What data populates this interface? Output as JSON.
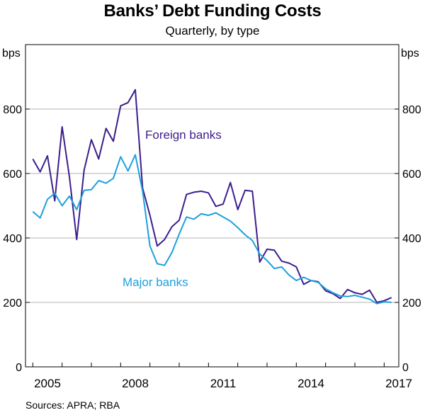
{
  "chart_data": {
    "type": "line",
    "title": "Banks’ Debt Funding Costs",
    "subtitle": "Quarterly, by type",
    "ylabel_left": "bps",
    "ylabel_right": "bps",
    "ylim": [
      0,
      1000
    ],
    "y_ticks": [
      0,
      200,
      400,
      600,
      800
    ],
    "xlim": [
      2004.75,
      2017.5
    ],
    "x_ticks": [
      2005,
      2008,
      2011,
      2014,
      2017
    ],
    "grid": true,
    "source": "Sources: APRA; RBA",
    "series": [
      {
        "name": "Foreign banks",
        "color": "#3c1e8c",
        "x": [
          2005.0,
          2005.25,
          2005.5,
          2005.75,
          2006.0,
          2006.25,
          2006.5,
          2006.75,
          2007.0,
          2007.25,
          2007.5,
          2007.75,
          2008.0,
          2008.25,
          2008.5,
          2008.75,
          2009.0,
          2009.25,
          2009.5,
          2009.75,
          2010.0,
          2010.25,
          2010.5,
          2010.75,
          2011.0,
          2011.25,
          2011.5,
          2011.75,
          2012.0,
          2012.25,
          2012.5,
          2012.75,
          2013.0,
          2013.25,
          2013.5,
          2013.75,
          2014.0,
          2014.25,
          2014.5,
          2014.75,
          2015.0,
          2015.25,
          2015.5,
          2015.75,
          2016.0,
          2016.25,
          2016.5,
          2016.75,
          2017.0,
          2017.25
        ],
        "y": [
          645,
          605,
          655,
          515,
          745,
          590,
          395,
          610,
          705,
          645,
          740,
          700,
          810,
          820,
          860,
          555,
          470,
          375,
          395,
          435,
          455,
          535,
          542,
          545,
          540,
          498,
          505,
          572,
          488,
          548,
          545,
          325,
          365,
          362,
          328,
          322,
          310,
          256,
          268,
          264,
          236,
          227,
          212,
          240,
          230,
          225,
          238,
          200,
          205,
          215
        ]
      },
      {
        "name": "Major banks",
        "color": "#1ea0dc",
        "x": [
          2005.0,
          2005.25,
          2005.5,
          2005.75,
          2006.0,
          2006.25,
          2006.5,
          2006.75,
          2007.0,
          2007.25,
          2007.5,
          2007.75,
          2008.0,
          2008.25,
          2008.5,
          2008.75,
          2009.0,
          2009.25,
          2009.5,
          2009.75,
          2010.0,
          2010.25,
          2010.5,
          2010.75,
          2011.0,
          2011.25,
          2011.5,
          2011.75,
          2012.0,
          2012.25,
          2012.5,
          2012.75,
          2013.0,
          2013.25,
          2013.5,
          2013.75,
          2014.0,
          2014.25,
          2014.5,
          2014.75,
          2015.0,
          2015.25,
          2015.5,
          2015.75,
          2016.0,
          2016.25,
          2016.5,
          2016.75,
          2017.0,
          2017.25
        ],
        "y": [
          482,
          462,
          520,
          538,
          500,
          530,
          488,
          548,
          550,
          578,
          570,
          585,
          652,
          608,
          658,
          545,
          375,
          320,
          315,
          355,
          412,
          465,
          458,
          475,
          470,
          478,
          465,
          452,
          432,
          410,
          392,
          350,
          330,
          305,
          310,
          285,
          268,
          278,
          268,
          262,
          242,
          230,
          220,
          218,
          222,
          216,
          210,
          196,
          202,
          200
        ]
      }
    ],
    "annotations": [
      {
        "text": "Foreign banks",
        "series": "Foreign banks"
      },
      {
        "text": "Major banks",
        "series": "Major banks"
      }
    ]
  }
}
